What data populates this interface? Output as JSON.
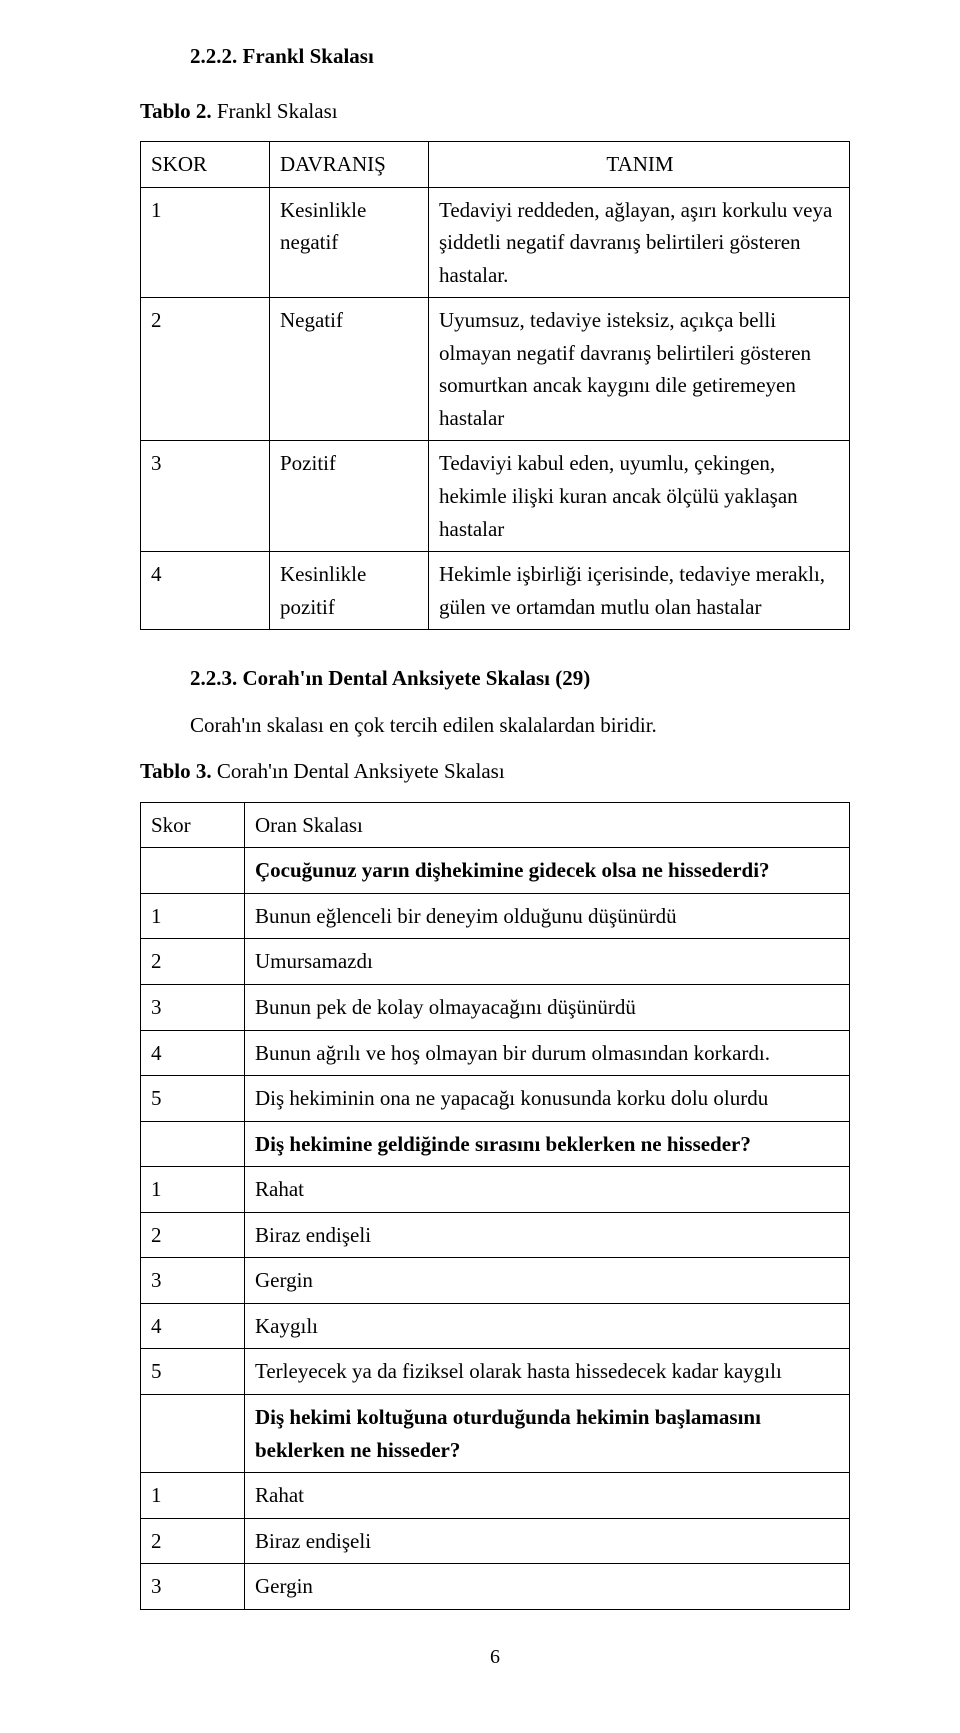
{
  "heading1": "2.2.2. Frankl Skalası",
  "caption1_bold": "Tablo 2.",
  "caption1_rest": " Frankl Skalası",
  "t1": {
    "h1": "SKOR",
    "h2": "DAVRANIŞ",
    "h3": "TANIM",
    "r1c1": "1",
    "r1c2": "Kesinlikle negatif",
    "r1c3": "Tedaviyi reddeden, ağlayan, aşırı korkulu veya şiddetli negatif davranış belirtileri gösteren hastalar.",
    "r2c1": "2",
    "r2c2": "Negatif",
    "r2c3": "Uyumsuz, tedaviye isteksiz, açıkça belli olmayan negatif davranış belirtileri gösteren somurtkan ancak kaygını dile getiremeyen hastalar",
    "r3c1": "3",
    "r3c2": "Pozitif",
    "r3c3": "Tedaviyi kabul eden, uyumlu, çekingen, hekimle ilişki kuran ancak ölçülü yaklaşan hastalar",
    "r4c1": "4",
    "r4c2": "Kesinlikle pozitif",
    "r4c3": "Hekimle işbirliği içerisinde, tedaviye meraklı, gülen ve ortamdan mutlu olan hastalar"
  },
  "heading2": "2.2.3. Corah'ın Dental Anksiyete Skalası (29)",
  "para2": "Corah'ın skalası en çok tercih edilen skalalardan biridir.",
  "caption2_bold": "Tablo 3.",
  "caption2_rest": " Corah'ın Dental Anksiyete Skalası",
  "t2": {
    "h1": "Skor",
    "h2": "Oran Skalası",
    "q1": "Çocuğunuz yarın dişhekimine gidecek olsa ne hissederdi?",
    "r1s": "1",
    "r1t": "Bunun eğlenceli bir deneyim olduğunu düşünürdü",
    "r2s": "2",
    "r2t": "Umursamazdı",
    "r3s": "3",
    "r3t": "Bunun pek de kolay olmayacağını düşünürdü",
    "r4s": "4",
    "r4t": "Bunun ağrılı ve hoş olmayan bir durum olmasından korkardı.",
    "r5s": "5",
    "r5t": "Diş hekiminin ona ne yapacağı konusunda korku dolu olurdu",
    "q2": "Diş hekimine geldiğinde sırasını beklerken ne hisseder?",
    "r6s": "1",
    "r6t": "Rahat",
    "r7s": "2",
    "r7t": "Biraz endişeli",
    "r8s": "3",
    "r8t": "Gergin",
    "r9s": "4",
    "r9t": "Kaygılı",
    "r10s": "5",
    "r10t": "Terleyecek ya da fiziksel olarak hasta hissedecek kadar kaygılı",
    "q3": "Diş hekimi koltuğuna oturduğunda hekimin başlamasını beklerken ne hisseder?",
    "r11s": "1",
    "r11t": "Rahat",
    "r12s": "2",
    "r12t": "Biraz endişeli",
    "r13s": "3",
    "r13t": "Gergin"
  },
  "pagenum": "6"
}
